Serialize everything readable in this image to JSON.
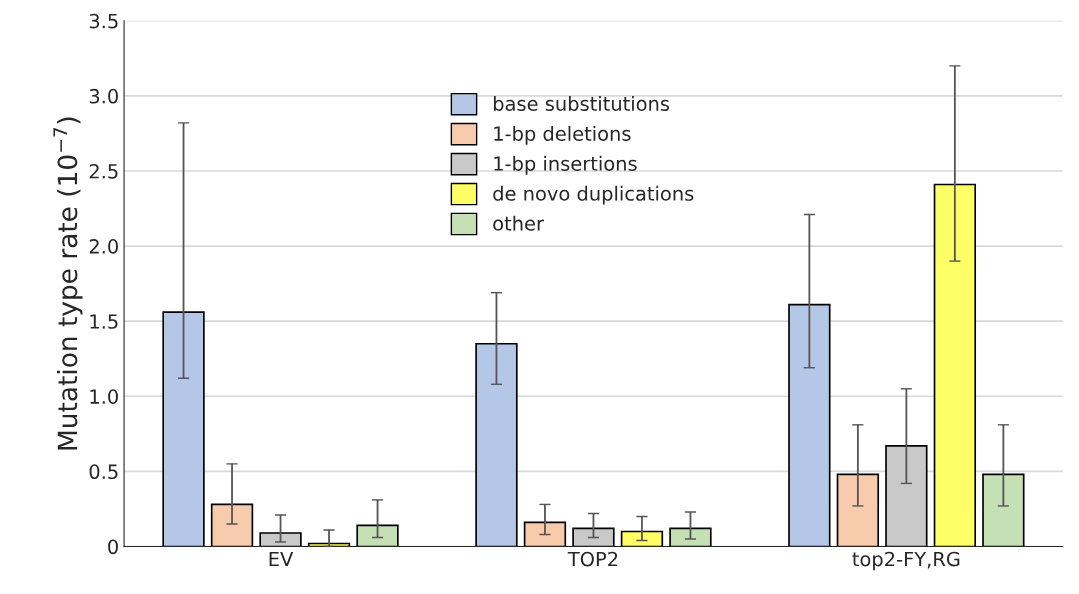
{
  "chart_data": {
    "type": "bar",
    "ylabel": "Mutation type rate (10$^{−7}$)",
    "categories": [
      "EV",
      "TOP2",
      "top2-FY,RG"
    ],
    "series": [
      {
        "name": "base substitutions",
        "color": "#b4c7e7",
        "values": [
          1.56,
          1.35,
          1.61
        ],
        "errors": [
          [
            1.12,
            2.82
          ],
          [
            1.08,
            1.69
          ],
          [
            1.19,
            2.21
          ]
        ]
      },
      {
        "name": "1-bp deletions",
        "color": "#f8cbad",
        "values": [
          0.28,
          0.16,
          0.48
        ],
        "errors": [
          [
            0.15,
            0.55
          ],
          [
            0.08,
            0.28
          ],
          [
            0.27,
            0.81
          ]
        ]
      },
      {
        "name": "1-bp insertions",
        "color": "#c9c9c9",
        "values": [
          0.09,
          0.12,
          0.67
        ],
        "errors": [
          [
            0.03,
            0.21
          ],
          [
            0.06,
            0.22
          ],
          [
            0.42,
            1.05
          ]
        ]
      },
      {
        "name": "de novo duplications",
        "color": "#ffff66",
        "values": [
          0.02,
          0.1,
          2.41
        ],
        "errors": [
          [
            0.0,
            0.11
          ],
          [
            0.04,
            0.2
          ],
          [
            1.9,
            3.2
          ]
        ]
      },
      {
        "name": "other",
        "color": "#c5e0b4",
        "values": [
          0.14,
          0.12,
          0.48
        ],
        "errors": [
          [
            0.06,
            0.31
          ],
          [
            0.05,
            0.23
          ],
          [
            0.27,
            0.81
          ]
        ]
      }
    ],
    "ylim": [
      0,
      3.5
    ],
    "yticks": [
      {
        "value": 0,
        "label": "0"
      },
      {
        "value": 0.5,
        "label": "0.5"
      },
      {
        "value": 1,
        "label": "1.0"
      },
      {
        "value": 1.5,
        "label": "1.5"
      },
      {
        "value": 2,
        "label": "2.0"
      },
      {
        "value": 2.5,
        "label": "2.5"
      },
      {
        "value": 3,
        "label": "3.0"
      },
      {
        "value": 3.5,
        "label": "3.5"
      }
    ],
    "grid": "y",
    "legend": "top"
  }
}
